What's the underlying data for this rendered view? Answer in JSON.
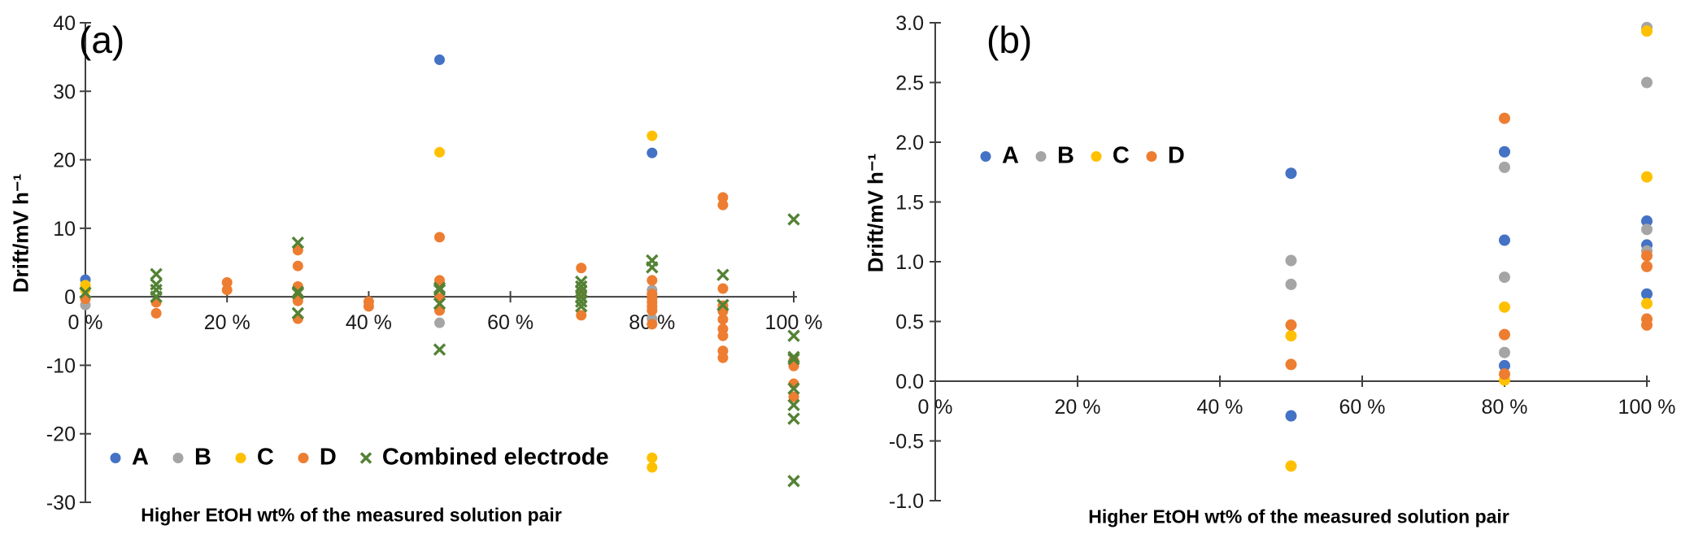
{
  "chart_data": [
    {
      "type": "scatter",
      "panel_label": "(a)",
      "xlabel": "Higher EtOH wt% of the measured solution pair",
      "ylabel": "Drift/mV h⁻¹",
      "xlim": [
        0,
        100
      ],
      "ylim": [
        -30,
        40
      ],
      "grid": false,
      "legend_position": "bottom",
      "x_ticks": {
        "values": [
          0,
          20,
          40,
          60,
          80,
          100
        ],
        "labels": [
          "0 %",
          "20 %",
          "40 %",
          "60 %",
          "80 %",
          "100 %"
        ]
      },
      "y_ticks": {
        "values": [
          40,
          30,
          20,
          10,
          0,
          -10,
          -20,
          -30
        ],
        "labels": [
          "40",
          "30",
          "20",
          "10",
          "0",
          "-10",
          "-20",
          "-30"
        ]
      },
      "series": [
        {
          "name": "A",
          "color": "#4472C4",
          "marker": "circle",
          "points": [
            [
              0,
              2.5
            ],
            [
              50,
              34.6
            ],
            [
              80,
              21.0
            ]
          ]
        },
        {
          "name": "B",
          "color": "#A5A5A5",
          "marker": "circle",
          "points": [
            [
              0,
              -1.2
            ],
            [
              50,
              -3.8
            ],
            [
              80,
              1.0
            ],
            [
              80,
              -3.2
            ]
          ]
        },
        {
          "name": "C",
          "color": "#FFC000",
          "marker": "circle",
          "points": [
            [
              0,
              1.7
            ],
            [
              0,
              1.0
            ],
            [
              50,
              21.1
            ],
            [
              80,
              23.5
            ],
            [
              80,
              -23.5
            ],
            [
              80,
              -24.9
            ]
          ]
        },
        {
          "name": "D",
          "color": "#ED7D31",
          "marker": "circle",
          "points": [
            [
              0,
              -0.3
            ],
            [
              10,
              -0.8
            ],
            [
              10,
              -2.4
            ],
            [
              20,
              2.1
            ],
            [
              20,
              1.0
            ],
            [
              30,
              6.8
            ],
            [
              30,
              4.5
            ],
            [
              30,
              1.5
            ],
            [
              30,
              0.0
            ],
            [
              30,
              -0.6
            ],
            [
              30,
              -3.2
            ],
            [
              40,
              -0.7
            ],
            [
              40,
              -1.4
            ],
            [
              50,
              8.7
            ],
            [
              50,
              2.4
            ],
            [
              50,
              -0.2
            ],
            [
              50,
              -2.0
            ],
            [
              70,
              4.2
            ],
            [
              70,
              0.5
            ],
            [
              70,
              -2.7
            ],
            [
              80,
              2.4
            ],
            [
              80,
              0.4
            ],
            [
              80,
              -0.2
            ],
            [
              80,
              -0.8
            ],
            [
              80,
              -1.4
            ],
            [
              80,
              -2.0
            ],
            [
              80,
              -4.0
            ],
            [
              90,
              14.5
            ],
            [
              90,
              13.4
            ],
            [
              90,
              1.2
            ],
            [
              90,
              -1.3
            ],
            [
              90,
              -2.1
            ],
            [
              90,
              -3.3
            ],
            [
              90,
              -4.7
            ],
            [
              90,
              -5.7
            ],
            [
              90,
              -7.9
            ],
            [
              90,
              -8.9
            ],
            [
              100,
              -9.3
            ],
            [
              100,
              -10.1
            ],
            [
              100,
              -12.7
            ],
            [
              100,
              -14.6
            ]
          ]
        },
        {
          "name": "Combined electrode",
          "color": "#548235",
          "marker": "x",
          "points": [
            [
              0,
              0.6
            ],
            [
              10,
              3.3
            ],
            [
              10,
              1.8
            ],
            [
              10,
              1.0
            ],
            [
              10,
              0.0
            ],
            [
              30,
              7.9
            ],
            [
              30,
              0.7
            ],
            [
              30,
              0.5
            ],
            [
              30,
              -2.4
            ],
            [
              50,
              1.3
            ],
            [
              50,
              1.0
            ],
            [
              50,
              -1.0
            ],
            [
              50,
              -7.7
            ],
            [
              70,
              2.2
            ],
            [
              70,
              1.5
            ],
            [
              70,
              0.8
            ],
            [
              70,
              0.0
            ],
            [
              70,
              -0.7
            ],
            [
              70,
              -1.4
            ],
            [
              80,
              5.3
            ],
            [
              80,
              4.3
            ],
            [
              90,
              3.2
            ],
            [
              90,
              -1.2
            ],
            [
              100,
              11.3
            ],
            [
              100,
              -5.7
            ],
            [
              100,
              -8.8
            ],
            [
              100,
              -9.1
            ],
            [
              100,
              -13.4
            ],
            [
              100,
              -15.8
            ],
            [
              100,
              -17.8
            ],
            [
              100,
              -26.9
            ]
          ]
        }
      ]
    },
    {
      "type": "scatter",
      "panel_label": "(b)",
      "xlabel": "Higher EtOH wt% of the measured solution pair",
      "ylabel": "Drift/mV h⁻¹",
      "xlim": [
        0,
        100
      ],
      "ylim": [
        -1.0,
        3.0
      ],
      "grid": false,
      "legend_position": "inside-top-left",
      "x_ticks": {
        "values": [
          0,
          20,
          40,
          60,
          80,
          100
        ],
        "labels": [
          "0 %",
          "20 %",
          "40 %",
          "60 %",
          "80 %",
          "100 %"
        ]
      },
      "y_ticks": {
        "values": [
          3.0,
          2.5,
          2.0,
          1.5,
          1.0,
          0.5,
          0.0,
          -0.5,
          -1.0
        ],
        "labels": [
          "3.0",
          "2.5",
          "2.0",
          "1.5",
          "1.0",
          "0.5",
          "0.0",
          "-0.5",
          "-1.0"
        ]
      },
      "series": [
        {
          "name": "A",
          "color": "#4472C4",
          "marker": "circle",
          "points": [
            [
              50,
              1.74
            ],
            [
              50,
              -0.29
            ],
            [
              80,
              1.92
            ],
            [
              80,
              1.18
            ],
            [
              80,
              0.13
            ],
            [
              100,
              1.34
            ],
            [
              100,
              1.14
            ],
            [
              100,
              0.73
            ]
          ]
        },
        {
          "name": "B",
          "color": "#A5A5A5",
          "marker": "circle",
          "points": [
            [
              50,
              1.01
            ],
            [
              50,
              0.81
            ],
            [
              80,
              1.79
            ],
            [
              80,
              0.87
            ],
            [
              80,
              0.24
            ],
            [
              100,
              2.96
            ],
            [
              100,
              2.5
            ],
            [
              100,
              1.27
            ],
            [
              100,
              1.09
            ]
          ]
        },
        {
          "name": "C",
          "color": "#FFC000",
          "marker": "circle",
          "points": [
            [
              50,
              0.38
            ],
            [
              50,
              -0.71
            ],
            [
              80,
              0.62
            ],
            [
              80,
              0.01
            ],
            [
              100,
              2.93
            ],
            [
              100,
              1.71
            ],
            [
              100,
              0.65
            ]
          ]
        },
        {
          "name": "D",
          "color": "#ED7D31",
          "marker": "circle",
          "points": [
            [
              50,
              0.47
            ],
            [
              50,
              0.14
            ],
            [
              80,
              2.2
            ],
            [
              80,
              0.39
            ],
            [
              80,
              0.06
            ],
            [
              100,
              1.05
            ],
            [
              100,
              0.96
            ],
            [
              100,
              0.52
            ],
            [
              100,
              0.47
            ]
          ]
        }
      ]
    }
  ]
}
